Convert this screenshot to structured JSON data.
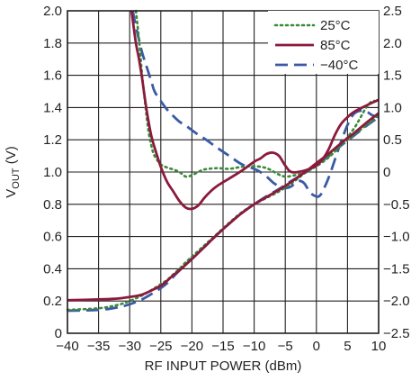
{
  "chart_data": {
    "type": "line",
    "xlabel": "RF INPUT POWER (dBm)",
    "ylabel": "VOUT (V)",
    "ylabel_main": "V",
    "ylabel_sub": "OUT",
    "ylabel_unit": " (V)",
    "xlim": [
      -40,
      10
    ],
    "ylim": [
      0,
      2.0
    ],
    "y2lim": [
      -2.5,
      2.5
    ],
    "xticks": [
      -40,
      -35,
      -30,
      -25,
      -20,
      -15,
      -10,
      -5,
      0,
      5,
      10
    ],
    "xtick_labels": [
      "−40",
      "−35",
      "−30",
      "−25",
      "−20",
      "−15",
      "−10",
      "−5",
      "0",
      "5",
      "10"
    ],
    "yticks": [
      0,
      0.2,
      0.4,
      0.6,
      0.8,
      1.0,
      1.2,
      1.4,
      1.6,
      1.8,
      2.0
    ],
    "ytick_labels": [
      "0",
      "0.2",
      "0.4",
      "0.6",
      "0.8",
      "1.0",
      "1.2",
      "1.4",
      "1.6",
      "1.8",
      "2.0"
    ],
    "y2ticks": [
      -2.5,
      -2.0,
      -1.5,
      -1.0,
      -0.5,
      0,
      0.5,
      1.0,
      1.5,
      2.0,
      2.5
    ],
    "y2tick_labels": [
      "−2.5",
      "−2.0",
      "−1.5",
      "−1.0",
      "−0.5",
      "0",
      "0.5",
      "1.0",
      "1.5",
      "2.0",
      "2.5"
    ],
    "grid": true,
    "legend_position": "top-right",
    "series": [
      {
        "name": "25°C",
        "color": "#3a8a3a",
        "style": "dotted",
        "vout": {
          "x": [
            -40,
            -35,
            -32,
            -30,
            -28,
            -26,
            -25,
            -24,
            -23,
            -22,
            -21,
            -20,
            -18,
            -16,
            -14,
            -12,
            -10,
            -8,
            -6,
            -4,
            -2,
            0,
            2,
            4,
            6,
            8,
            9,
            10
          ],
          "y": [
            0.145,
            0.155,
            0.175,
            0.2,
            0.235,
            0.28,
            0.305,
            0.33,
            0.365,
            0.4,
            0.44,
            0.475,
            0.545,
            0.615,
            0.685,
            0.75,
            0.8,
            0.84,
            0.88,
            0.93,
            0.99,
            1.05,
            1.11,
            1.17,
            1.23,
            1.29,
            1.32,
            1.36
          ]
        },
        "error": {
          "x": [
            -29,
            -28.5,
            -28,
            -27.5,
            -27,
            -26.5,
            -26,
            -25,
            -24,
            -23,
            -22,
            -21,
            -20,
            -19,
            -18,
            -16,
            -14,
            -12,
            -10,
            -8,
            -6,
            -5,
            -4,
            -2,
            0,
            2,
            4,
            6,
            7,
            8,
            9,
            10
          ],
          "y": [
            2.5,
            2.05,
            1.5,
            1.05,
            0.65,
            0.4,
            0.25,
            0.12,
            0.07,
            0.04,
            0.0,
            -0.07,
            -0.05,
            0.0,
            0.04,
            0.06,
            0.05,
            0.08,
            0.09,
            0.06,
            -0.04,
            -0.07,
            -0.06,
            -0.01,
            0.09,
            0.23,
            0.42,
            0.67,
            0.83,
            1.0,
            1.1,
            1.08
          ]
        }
      },
      {
        "name": "85°C",
        "color": "#8b1a3c",
        "style": "solid",
        "vout": {
          "x": [
            -40,
            -35,
            -32,
            -30,
            -28,
            -26,
            -25,
            -24,
            -23,
            -22,
            -21,
            -20,
            -18,
            -16,
            -14,
            -12,
            -10,
            -8,
            -6,
            -4,
            -2,
            0,
            2,
            4,
            6,
            8,
            10
          ],
          "y": [
            0.205,
            0.21,
            0.215,
            0.225,
            0.24,
            0.275,
            0.295,
            0.325,
            0.36,
            0.39,
            0.425,
            0.46,
            0.535,
            0.61,
            0.68,
            0.745,
            0.8,
            0.845,
            0.89,
            0.94,
            0.995,
            1.055,
            1.115,
            1.18,
            1.24,
            1.305,
            1.365
          ]
        },
        "error": {
          "x": [
            -29.7,
            -29.5,
            -29,
            -28.5,
            -28,
            -27.5,
            -27,
            -26.5,
            -26,
            -25,
            -24,
            -23,
            -22,
            -21,
            -20,
            -19,
            -18,
            -17,
            -16,
            -14,
            -12,
            -10,
            -9,
            -8,
            -7,
            -6,
            -5,
            -4,
            -2,
            0,
            1,
            2,
            3,
            4,
            5,
            6,
            8,
            10
          ],
          "y": [
            2.5,
            2.35,
            2.0,
            1.75,
            1.45,
            1.1,
            0.8,
            0.55,
            0.38,
            0.08,
            -0.15,
            -0.3,
            -0.45,
            -0.55,
            -0.57,
            -0.52,
            -0.4,
            -0.3,
            -0.22,
            -0.1,
            0.02,
            0.16,
            0.21,
            0.28,
            0.3,
            0.25,
            0.1,
            0.0,
            0.02,
            0.1,
            0.2,
            0.36,
            0.58,
            0.75,
            0.85,
            0.93,
            1.03,
            1.12
          ]
        }
      },
      {
        "name": "−40°C",
        "color": "#3b5aa5",
        "style": "dashed",
        "vout": {
          "x": [
            -40,
            -35,
            -32,
            -30,
            -28,
            -26,
            -25,
            -24,
            -23,
            -22,
            -21,
            -20,
            -18,
            -16,
            -14,
            -12,
            -10,
            -8,
            -6,
            -4,
            -2,
            0,
            2,
            4,
            6,
            8,
            10
          ],
          "y": [
            0.14,
            0.145,
            0.16,
            0.18,
            0.21,
            0.255,
            0.28,
            0.31,
            0.35,
            0.39,
            0.425,
            0.465,
            0.535,
            0.61,
            0.68,
            0.745,
            0.8,
            0.85,
            0.895,
            0.945,
            0.99,
            1.045,
            1.1,
            1.165,
            1.225,
            1.285,
            1.34
          ]
        },
        "error": {
          "x": [
            -29.5,
            -29,
            -28.5,
            -28,
            -27.5,
            -27,
            -26.5,
            -26,
            -25,
            -24,
            -23,
            -22,
            -21,
            -20,
            -19,
            -18,
            -17,
            -16,
            -14,
            -12,
            -10,
            -9,
            -8,
            -7,
            -6,
            -5,
            -4,
            -3,
            -2,
            -1,
            0,
            0.5,
            1,
            2,
            3,
            4,
            5,
            6,
            7,
            8,
            9,
            10
          ],
          "y": [
            2.5,
            2.25,
            2.05,
            1.85,
            1.7,
            1.55,
            1.4,
            1.25,
            1.1,
            0.97,
            0.87,
            0.78,
            0.72,
            0.65,
            0.58,
            0.52,
            0.45,
            0.38,
            0.25,
            0.12,
            0.05,
            0.0,
            -0.07,
            -0.16,
            -0.22,
            -0.25,
            -0.22,
            -0.14,
            -0.17,
            -0.32,
            -0.38,
            -0.37,
            -0.3,
            -0.08,
            0.2,
            0.48,
            0.73,
            0.9,
            0.95,
            0.94,
            0.88,
            0.85
          ]
        }
      }
    ]
  }
}
